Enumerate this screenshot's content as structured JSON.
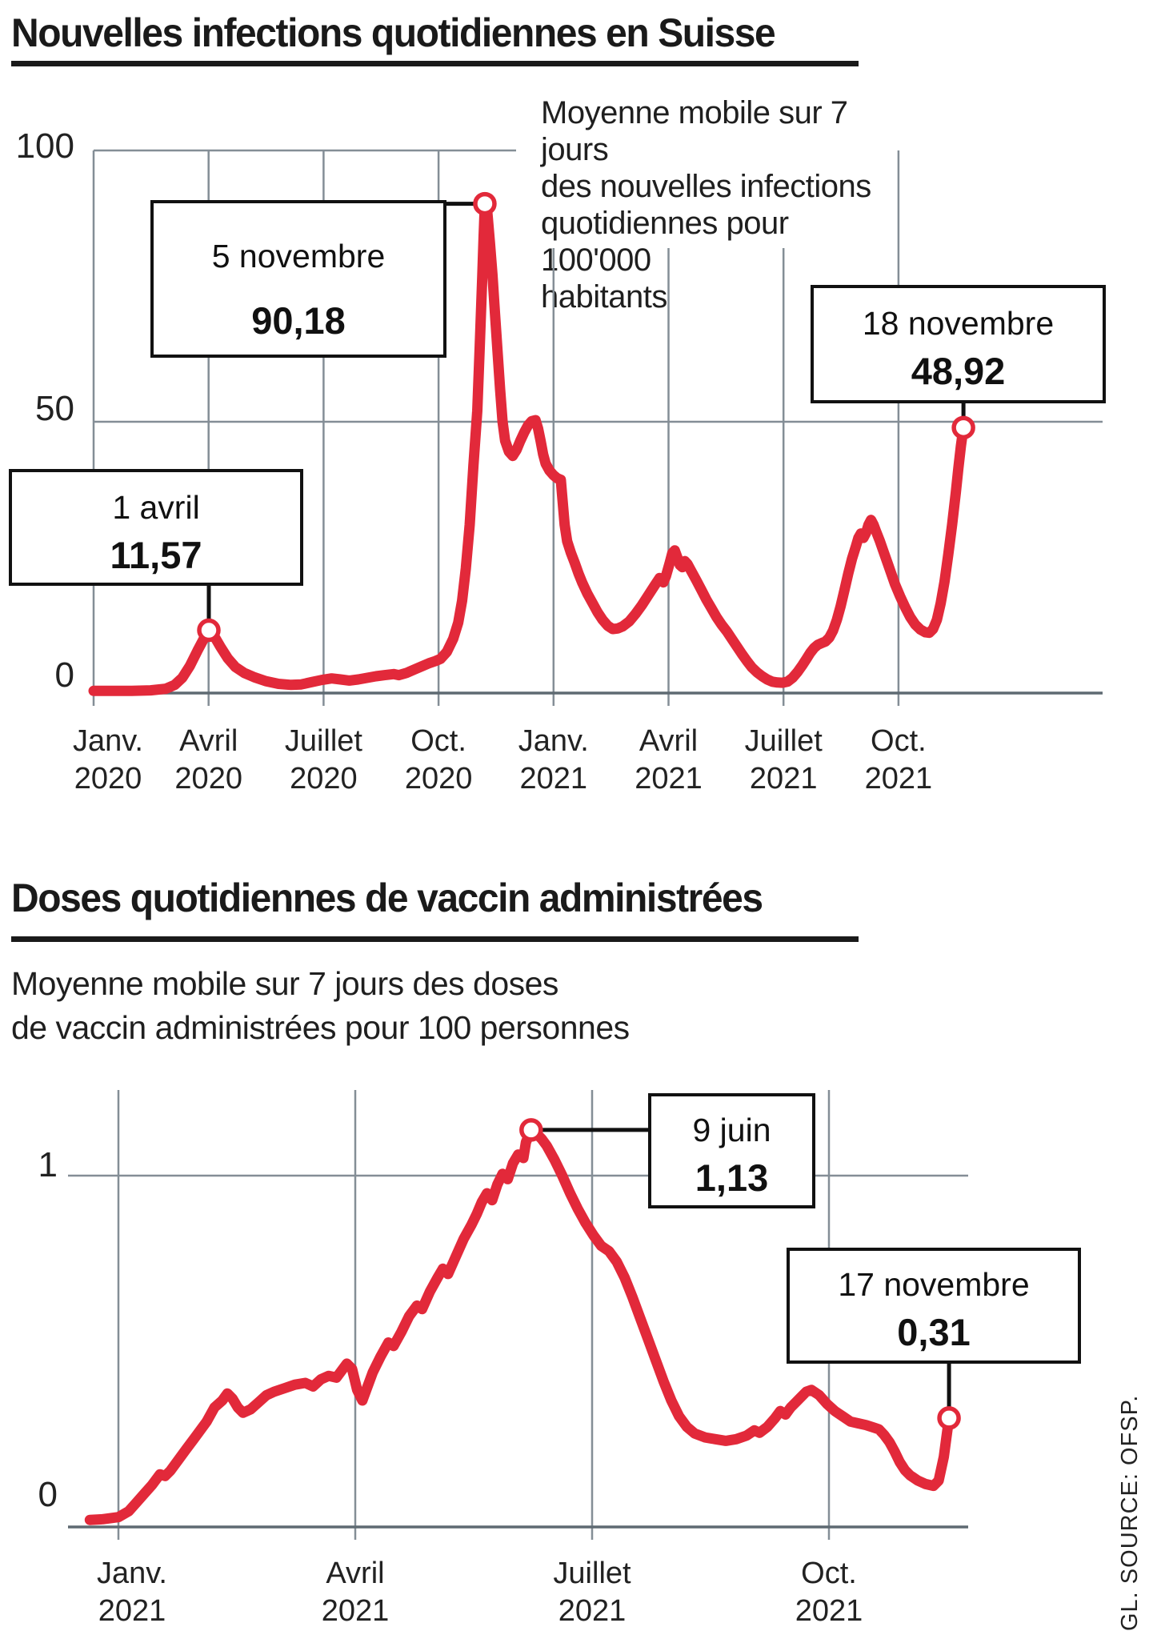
{
  "page": {
    "title1": "Nouvelles infections quotidiennes en Suisse",
    "title2": "Doses quotidiennes de vaccin administrées",
    "side_note_lines": [
      "Moyenne mobile sur 7 jours",
      "des nouvelles infections",
      "quotidiennes pour 100'000",
      "habitants"
    ],
    "subtitle2_lines": [
      "Moyenne mobile sur 7 jours des doses",
      "de vaccin administrées pour 100 personnes"
    ],
    "source": "GL. SOURCE: OFSP."
  },
  "colors": {
    "line": "#E2293A",
    "grid": "#848E96",
    "axis": "#5E6A72",
    "text": "#1A1A1A",
    "tick_text": "#222222"
  },
  "chart_data": [
    {
      "type": "line",
      "title": "Nouvelles infections quotidiennes en Suisse",
      "ylabel": "nouvelles infections quotidiennes pour 100'000 habitants (moyenne mobile 7 jours)",
      "ylim": [
        0,
        100
      ],
      "y_ticks": [
        {
          "value": 100,
          "label": "100"
        },
        {
          "value": 50,
          "label": "50"
        },
        {
          "value": 0,
          "label": "0"
        }
      ],
      "x_ticks": [
        {
          "month": "Janv.",
          "year": "2020"
        },
        {
          "month": "Avril",
          "year": "2020"
        },
        {
          "month": "Juillet",
          "year": "2020"
        },
        {
          "month": "Oct.",
          "year": "2020"
        },
        {
          "month": "Janv.",
          "year": "2021"
        },
        {
          "month": "Avril",
          "year": "2021"
        },
        {
          "month": "Juillet",
          "year": "2021"
        },
        {
          "month": "Oct.",
          "year": "2021"
        }
      ],
      "annotations": [
        {
          "date_label": "5 novembre",
          "value_label": "90,18",
          "day": 309,
          "value": 90.18
        },
        {
          "date_label": "1 avril",
          "value_label": "11,57",
          "day": 91,
          "value": 11.57
        },
        {
          "date_label": "18 novembre",
          "value_label": "48,92",
          "day": 687,
          "value": 48.92
        }
      ],
      "series_format": "[days since 2020-01-01, infections per 100000]",
      "series": [
        [
          0,
          0.4
        ],
        [
          15,
          0.4
        ],
        [
          30,
          0.4
        ],
        [
          45,
          0.5
        ],
        [
          57,
          0.8
        ],
        [
          64,
          1.5
        ],
        [
          70,
          2.8
        ],
        [
          76,
          5
        ],
        [
          82,
          7.8
        ],
        [
          87,
          10
        ],
        [
          91,
          11.57
        ],
        [
          95,
          10.6
        ],
        [
          100,
          8.6
        ],
        [
          106,
          6.4
        ],
        [
          112,
          4.8
        ],
        [
          119,
          3.7
        ],
        [
          127,
          2.9
        ],
        [
          136,
          2.2
        ],
        [
          146,
          1.7
        ],
        [
          156,
          1.5
        ],
        [
          164,
          1.6
        ],
        [
          172,
          2
        ],
        [
          180,
          2.4
        ],
        [
          188,
          2.7
        ],
        [
          195,
          2.5
        ],
        [
          202,
          2.3
        ],
        [
          209,
          2.5
        ],
        [
          216,
          2.8
        ],
        [
          223,
          3.1
        ],
        [
          230,
          3.3
        ],
        [
          237,
          3.5
        ],
        [
          241,
          3.3
        ],
        [
          247,
          3.7
        ],
        [
          253,
          4.3
        ],
        [
          259,
          4.9
        ],
        [
          265,
          5.5
        ],
        [
          270,
          5.9
        ],
        [
          274,
          6.3
        ],
        [
          279,
          7.6
        ],
        [
          284,
          10
        ],
        [
          288,
          13
        ],
        [
          291,
          17
        ],
        [
          294,
          23
        ],
        [
          297,
          31
        ],
        [
          300,
          42
        ],
        [
          303,
          52
        ],
        [
          305,
          64
        ],
        [
          307,
          77
        ],
        [
          308,
          84
        ],
        [
          309,
          90.18
        ],
        [
          311,
          88.5
        ],
        [
          313,
          83
        ],
        [
          315,
          77
        ],
        [
          317,
          70
        ],
        [
          319,
          63
        ],
        [
          321,
          56
        ],
        [
          323,
          50
        ],
        [
          325,
          46.5
        ],
        [
          328,
          44.5
        ],
        [
          331,
          43.7
        ],
        [
          334,
          44.8
        ],
        [
          337,
          46.5
        ],
        [
          340,
          48
        ],
        [
          343,
          49.3
        ],
        [
          346,
          50.1
        ],
        [
          349,
          50.3
        ],
        [
          351,
          48.8
        ],
        [
          353,
          46.5
        ],
        [
          355,
          44
        ],
        [
          357,
          42.3
        ],
        [
          360,
          41
        ],
        [
          363,
          40.2
        ],
        [
          366,
          39.6
        ],
        [
          369,
          39.3
        ],
        [
          370,
          36.5
        ],
        [
          372,
          31
        ],
        [
          374,
          28
        ],
        [
          377,
          25.8
        ],
        [
          380,
          24
        ],
        [
          383,
          22
        ],
        [
          386,
          20.3
        ],
        [
          390,
          18.3
        ],
        [
          394,
          16.6
        ],
        [
          398,
          14.9
        ],
        [
          402,
          13.5
        ],
        [
          406,
          12.4
        ],
        [
          410,
          11.8
        ],
        [
          414,
          11.9
        ],
        [
          418,
          12.3
        ],
        [
          423,
          13.2
        ],
        [
          428,
          14.6
        ],
        [
          433,
          16.2
        ],
        [
          438,
          18
        ],
        [
          443,
          19.8
        ],
        [
          447,
          21.2
        ],
        [
          450,
          20.4
        ],
        [
          452,
          21.5
        ],
        [
          455,
          24
        ],
        [
          457,
          25.8
        ],
        [
          459,
          26.3
        ],
        [
          461,
          25
        ],
        [
          463,
          23.6
        ],
        [
          465,
          23.2
        ],
        [
          467,
          24.3
        ],
        [
          469,
          23.8
        ],
        [
          472,
          22.5
        ],
        [
          476,
          20.8
        ],
        [
          480,
          19
        ],
        [
          484,
          17.2
        ],
        [
          488,
          15.6
        ],
        [
          492,
          14
        ],
        [
          496,
          12.6
        ],
        [
          500,
          11.4
        ],
        [
          504,
          10
        ],
        [
          508,
          8.6
        ],
        [
          512,
          7.2
        ],
        [
          516,
          5.9
        ],
        [
          520,
          4.7
        ],
        [
          524,
          3.8
        ],
        [
          528,
          3.1
        ],
        [
          532,
          2.5
        ],
        [
          536,
          2.1
        ],
        [
          540,
          1.95
        ],
        [
          544,
          1.9
        ],
        [
          548,
          2.1
        ],
        [
          552,
          2.8
        ],
        [
          556,
          3.9
        ],
        [
          560,
          5.2
        ],
        [
          563,
          6.3
        ],
        [
          566,
          7.4
        ],
        [
          569,
          8.3
        ],
        [
          572,
          8.9
        ],
        [
          575,
          9.2
        ],
        [
          578,
          9.5
        ],
        [
          581,
          10.2
        ],
        [
          584,
          11.5
        ],
        [
          587,
          13.5
        ],
        [
          590,
          16
        ],
        [
          593,
          19
        ],
        [
          596,
          22
        ],
        [
          599,
          24.8
        ],
        [
          602,
          27
        ],
        [
          604,
          28.6
        ],
        [
          606,
          29.4
        ],
        [
          608,
          28.6
        ],
        [
          610,
          29.5
        ],
        [
          612,
          31
        ],
        [
          614,
          31.9
        ],
        [
          616,
          31
        ],
        [
          618,
          29.8
        ],
        [
          621,
          28
        ],
        [
          624,
          26
        ],
        [
          627,
          24
        ],
        [
          630,
          22
        ],
        [
          633,
          20
        ],
        [
          637,
          17.8
        ],
        [
          641,
          15.8
        ],
        [
          645,
          14
        ],
        [
          649,
          12.6
        ],
        [
          653,
          11.7
        ],
        [
          657,
          11.2
        ],
        [
          660,
          11.1
        ],
        [
          663,
          11.8
        ],
        [
          666,
          13.5
        ],
        [
          669,
          16.5
        ],
        [
          672,
          20.5
        ],
        [
          675,
          25.5
        ],
        [
          678,
          31
        ],
        [
          681,
          37
        ],
        [
          683,
          41.5
        ],
        [
          685,
          45.5
        ],
        [
          687,
          48.92
        ]
      ]
    },
    {
      "type": "line",
      "title": "Doses quotidiennes de vaccin administrées",
      "ylabel": "doses de vaccin administrées pour 100 personnes (moyenne mobile 7 jours)",
      "ylim": [
        0,
        1.25
      ],
      "y_ticks": [
        {
          "value": 1,
          "label": "1"
        },
        {
          "value": 0,
          "label": "0"
        }
      ],
      "x_ticks": [
        {
          "month": "Janv.",
          "year": "2021"
        },
        {
          "month": "Avril",
          "year": "2021"
        },
        {
          "month": "Juillet",
          "year": "2021"
        },
        {
          "month": "Oct.",
          "year": "2021"
        }
      ],
      "annotations": [
        {
          "date_label": "9 juin",
          "value_label": "1,13",
          "day": 525,
          "value": 1.13
        },
        {
          "date_label": "17 novembre",
          "value_label": "0,31",
          "day": 686,
          "value": 0.31
        }
      ],
      "series_format": "[days since 2020-01-01, doses per 100 persons]",
      "series": [
        [
          355,
          0.02
        ],
        [
          360,
          0.022
        ],
        [
          366,
          0.028
        ],
        [
          370,
          0.045
        ],
        [
          373,
          0.07
        ],
        [
          376,
          0.095
        ],
        [
          379,
          0.12
        ],
        [
          382,
          0.15
        ],
        [
          384,
          0.145
        ],
        [
          386,
          0.16
        ],
        [
          389,
          0.19
        ],
        [
          392,
          0.22
        ],
        [
          395,
          0.25
        ],
        [
          397,
          0.27
        ],
        [
          400,
          0.3
        ],
        [
          403,
          0.34
        ],
        [
          406,
          0.36
        ],
        [
          408,
          0.38
        ],
        [
          410,
          0.365
        ],
        [
          412,
          0.34
        ],
        [
          414,
          0.325
        ],
        [
          417,
          0.335
        ],
        [
          420,
          0.355
        ],
        [
          423,
          0.375
        ],
        [
          426,
          0.385
        ],
        [
          430,
          0.395
        ],
        [
          434,
          0.405
        ],
        [
          438,
          0.41
        ],
        [
          441,
          0.4
        ],
        [
          444,
          0.42
        ],
        [
          447,
          0.43
        ],
        [
          450,
          0.425
        ],
        [
          452,
          0.445
        ],
        [
          454,
          0.465
        ],
        [
          456,
          0.45
        ],
        [
          458,
          0.39
        ],
        [
          460,
          0.36
        ],
        [
          462,
          0.4
        ],
        [
          464,
          0.44
        ],
        [
          467,
          0.485
        ],
        [
          470,
          0.525
        ],
        [
          472,
          0.515
        ],
        [
          475,
          0.555
        ],
        [
          478,
          0.6
        ],
        [
          481,
          0.63
        ],
        [
          483,
          0.62
        ],
        [
          486,
          0.67
        ],
        [
          489,
          0.71
        ],
        [
          491,
          0.735
        ],
        [
          493,
          0.72
        ],
        [
          496,
          0.77
        ],
        [
          499,
          0.82
        ],
        [
          502,
          0.86
        ],
        [
          504,
          0.89
        ],
        [
          506,
          0.925
        ],
        [
          508,
          0.95
        ],
        [
          510,
          0.93
        ],
        [
          512,
          0.975
        ],
        [
          514,
          1.005
        ],
        [
          516,
          0.99
        ],
        [
          518,
          1.035
        ],
        [
          520,
          1.06
        ],
        [
          522,
          1.05
        ],
        [
          523,
          1.095
        ],
        [
          525,
          1.13
        ],
        [
          527,
          1.12
        ],
        [
          529,
          1.105
        ],
        [
          531,
          1.085
        ],
        [
          534,
          1.045
        ],
        [
          537,
          1.0
        ],
        [
          540,
          0.95
        ],
        [
          543,
          0.905
        ],
        [
          546,
          0.865
        ],
        [
          549,
          0.83
        ],
        [
          552,
          0.8
        ],
        [
          555,
          0.785
        ],
        [
          558,
          0.755
        ],
        [
          561,
          0.71
        ],
        [
          564,
          0.655
        ],
        [
          567,
          0.595
        ],
        [
          570,
          0.535
        ],
        [
          573,
          0.475
        ],
        [
          576,
          0.415
        ],
        [
          579,
          0.36
        ],
        [
          582,
          0.315
        ],
        [
          585,
          0.285
        ],
        [
          588,
          0.266
        ],
        [
          592,
          0.255
        ],
        [
          596,
          0.25
        ],
        [
          600,
          0.245
        ],
        [
          604,
          0.25
        ],
        [
          608,
          0.26
        ],
        [
          611,
          0.275
        ],
        [
          613,
          0.268
        ],
        [
          616,
          0.285
        ],
        [
          619,
          0.31
        ],
        [
          621,
          0.33
        ],
        [
          623,
          0.32
        ],
        [
          625,
          0.34
        ],
        [
          627,
          0.355
        ],
        [
          629,
          0.37
        ],
        [
          631,
          0.385
        ],
        [
          633,
          0.39
        ],
        [
          636,
          0.375
        ],
        [
          639,
          0.35
        ],
        [
          642,
          0.33
        ],
        [
          645,
          0.315
        ],
        [
          648,
          0.3
        ],
        [
          651,
          0.295
        ],
        [
          654,
          0.29
        ],
        [
          657,
          0.283
        ],
        [
          659,
          0.278
        ],
        [
          661,
          0.262
        ],
        [
          663,
          0.242
        ],
        [
          665,
          0.215
        ],
        [
          667,
          0.185
        ],
        [
          669,
          0.162
        ],
        [
          671,
          0.147
        ],
        [
          674,
          0.132
        ],
        [
          677,
          0.122
        ],
        [
          680,
          0.117
        ],
        [
          682,
          0.132
        ],
        [
          684,
          0.2
        ],
        [
          685,
          0.255
        ],
        [
          686,
          0.31
        ]
      ]
    }
  ]
}
